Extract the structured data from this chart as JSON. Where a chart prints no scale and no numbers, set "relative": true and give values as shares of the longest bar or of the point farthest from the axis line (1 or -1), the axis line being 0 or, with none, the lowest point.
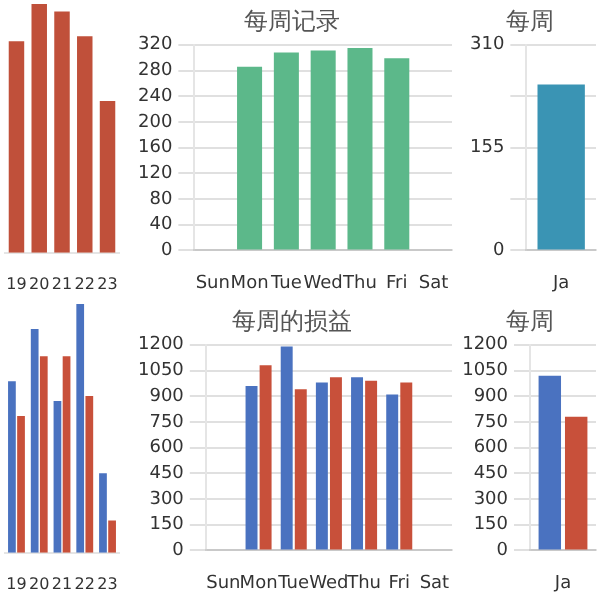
{
  "chart_data": [
    {
      "type": "bar",
      "relative": true,
      "categories": [
        "19",
        "20",
        "21",
        "22",
        "23"
      ],
      "values": [
        0.85,
        1,
        0.97,
        0.87,
        0.61
      ],
      "color": "#c0503a",
      "grid": "y"
    },
    {
      "type": "bar",
      "title": "每周记录",
      "categories": [
        "Sun",
        "Mon",
        "Tue",
        "Wed",
        "Thu",
        "Fri",
        "Sat"
      ],
      "values": [
        null,
        286,
        308,
        311,
        315,
        299,
        null
      ],
      "color": "#5cb88a",
      "ylim": [
        0,
        320
      ],
      "yticks": [
        0,
        40,
        80,
        120,
        160,
        200,
        240,
        280,
        320
      ],
      "grid": "y"
    },
    {
      "type": "bar",
      "title": "每周",
      "categories": [
        "Ja"
      ],
      "values": [
        250
      ],
      "color": "#3a94b4",
      "ylim": [
        0,
        310
      ],
      "yticks": [
        0,
        {
          "value": 77.5,
          "label": null
        },
        155,
        {
          "value": 232.5,
          "label": null
        },
        310
      ],
      "grid": "y"
    },
    {
      "type": "bar",
      "relative": true,
      "categories": [
        "19",
        "20",
        "21",
        "22",
        "23"
      ],
      "series": [
        {
          "color": "#4a72c0",
          "values": [
            0.69,
            0.9,
            0.61,
            1,
            0.32
          ]
        },
        {
          "color": "#c8503a",
          "values": [
            0.55,
            0.79,
            0.79,
            0.63,
            0.13
          ]
        }
      ],
      "grid": "y"
    },
    {
      "type": "bar",
      "title": "每周的损益",
      "categories": [
        "Sun",
        "Mon",
        "Tue",
        "Wed",
        "Thu",
        "Fri",
        "Sat"
      ],
      "series": [
        {
          "color": "#4a72c0",
          "values": [
            null,
            960,
            1190,
            980,
            1010,
            910,
            null
          ]
        },
        {
          "color": "#c8503a",
          "values": [
            null,
            1080,
            940,
            1010,
            990,
            980,
            null
          ]
        }
      ],
      "ylim": [
        0,
        1200
      ],
      "yticks": [
        0,
        150,
        300,
        450,
        600,
        750,
        900,
        1050,
        1200
      ],
      "grid": "y"
    },
    {
      "type": "bar",
      "title": "每周",
      "categories": [
        "Ja"
      ],
      "series": [
        {
          "color": "#4a72c0",
          "values": [
            1020
          ]
        },
        {
          "color": "#c8503a",
          "values": [
            780
          ]
        }
      ],
      "ylim": [
        0,
        1200
      ],
      "yticks": [
        0,
        150,
        300,
        450,
        600,
        750,
        900,
        1050,
        1200
      ],
      "grid": "y"
    }
  ]
}
